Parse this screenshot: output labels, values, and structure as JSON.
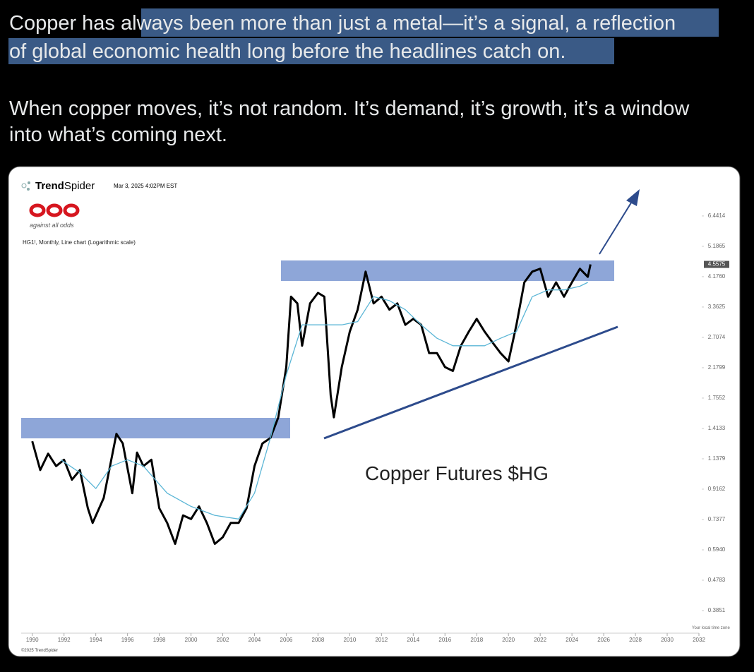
{
  "post": {
    "line1_plain": "Copper has al",
    "line1_highlight": "ways been more than just a metal—it’s a signal, a reflection",
    "line2_highlight": "of global economic health long before the headlines catch on.",
    "paragraph2_line1": "When copper moves, it’s not random. It’s demand, it’s growth, it’s a window",
    "paragraph2_line2": "into what’s coming next."
  },
  "chart_data": {
    "type": "line",
    "brand_bold": "Trend",
    "brand_light": "Spider",
    "timestamp": "Mar 3, 2025 4:02PM EST",
    "logo_caption": "against all odds",
    "subtitle": "HG1!, Monthly, Line chart (Logarithmic scale)",
    "title": "Copper Futures $HG",
    "timezone_note": "Your local time zone",
    "copyright": "©2025 TrendSpider",
    "log_scale": true,
    "xlim": [
      1989.3,
      2032
    ],
    "xticks": [
      1990,
      1992,
      1994,
      1996,
      1998,
      2000,
      2002,
      2004,
      2006,
      2008,
      2010,
      2012,
      2014,
      2016,
      2018,
      2020,
      2022,
      2024,
      2026,
      2028,
      2030,
      2032
    ],
    "ylim": [
      0.331,
      7.72
    ],
    "yticks": [
      0.3851,
      0.4783,
      {
        "value": 0.594,
        "label": "0.5940"
      },
      0.7377,
      0.9162,
      1.1379,
      1.4133,
      1.7552,
      2.1799,
      2.7074,
      3.3625,
      {
        "value": 4.176,
        "label": "4.1760"
      },
      5.1865,
      6.4414
    ],
    "current_price": 4.5575,
    "series": [
      {
        "color": "#000000",
        "width": 3,
        "x": [
          1990,
          1990.5,
          1991,
          1991.5,
          1992,
          1992.5,
          1993,
          1993.5,
          1993.8,
          1994.5,
          1995.3,
          1995.7,
          1996.3,
          1996.6,
          1997,
          1997.5,
          1998,
          1998.5,
          1999,
          1999.5,
          2000,
          2000.5,
          2001,
          2001.5,
          2002,
          2002.5,
          2003,
          2003.5,
          2004,
          2004.5,
          2005,
          2005.5,
          2006,
          2006.3,
          2006.7,
          2007,
          2007.5,
          2008,
          2008.4,
          2008.8,
          2009,
          2009.5,
          2010,
          2010.5,
          2011,
          2011.5,
          2012,
          2012.5,
          2013,
          2013.5,
          2014,
          2014.5,
          2015,
          2015.5,
          2016,
          2016.5,
          2017,
          2017.5,
          2018,
          2018.5,
          2019,
          2019.5,
          2020,
          2020.5,
          2021,
          2021.5,
          2022,
          2022.5,
          2023,
          2023.5,
          2024,
          2024.5,
          2025,
          2025.17
        ],
        "values": [
          1.29,
          1.05,
          1.18,
          1.08,
          1.13,
          0.98,
          1.05,
          0.8,
          0.72,
          0.86,
          1.36,
          1.27,
          0.89,
          1.19,
          1.08,
          1.13,
          0.8,
          0.72,
          0.62,
          0.76,
          0.74,
          0.81,
          0.72,
          0.62,
          0.65,
          0.72,
          0.72,
          0.8,
          1.08,
          1.27,
          1.32,
          1.53,
          2.19,
          3.62,
          3.45,
          2.55,
          3.45,
          3.72,
          3.62,
          1.79,
          1.53,
          2.19,
          2.82,
          3.3,
          4.33,
          3.45,
          3.62,
          3.3,
          3.45,
          2.96,
          3.09,
          2.96,
          2.42,
          2.42,
          2.19,
          2.13,
          2.55,
          2.82,
          3.09,
          2.82,
          2.61,
          2.42,
          2.28,
          2.96,
          4.01,
          4.33,
          4.42,
          3.62,
          4.01,
          3.62,
          4.01,
          4.42,
          4.17,
          4.5575
        ]
      },
      {
        "color": "#5bb6d6",
        "width": 1.3,
        "x": [
          1991.8,
          1993,
          1994,
          1995,
          1996,
          1997,
          1998.5,
          2000,
          2001.5,
          2003,
          2004,
          2005,
          2006,
          2007,
          2008.5,
          2009.5,
          2010.5,
          2011.5,
          2012.5,
          2013.5,
          2014.5,
          2015.5,
          2016.5,
          2017.5,
          2018.5,
          2019.5,
          2020.5,
          2021.5,
          2022.5,
          2023.5,
          2024.5,
          2025
        ],
        "values": [
          1.13,
          1.03,
          0.92,
          1.08,
          1.13,
          1.08,
          0.89,
          0.81,
          0.76,
          0.74,
          0.89,
          1.32,
          2.07,
          2.96,
          2.96,
          2.96,
          3.03,
          3.62,
          3.52,
          3.3,
          2.96,
          2.69,
          2.55,
          2.55,
          2.55,
          2.69,
          2.82,
          3.62,
          3.8,
          3.8,
          3.9,
          4.01
        ]
      }
    ]
  }
}
